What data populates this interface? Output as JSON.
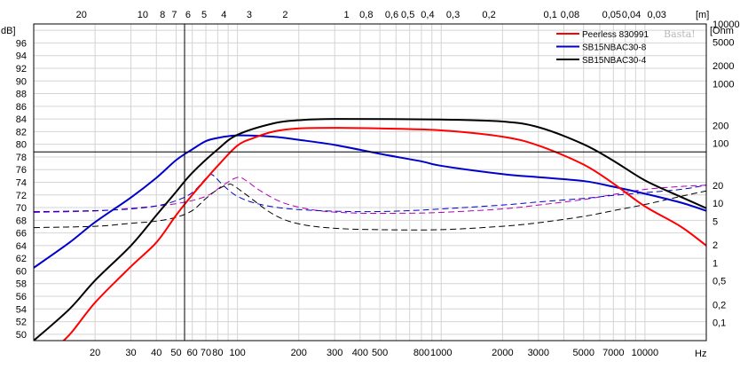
{
  "chart_data": {
    "type": "line",
    "left_axis_label": "dB]",
    "right_axis_label": "[Ohm",
    "top_axis_label": "[m]",
    "bottom_axis_label": "Hz",
    "watermark": "Basta!",
    "xlim": [
      10,
      20000
    ],
    "x_scale": "log",
    "ylim": [
      49,
      99
    ],
    "y2lim": [
      0.05,
      10000
    ],
    "y2_scale": "log",
    "grid": true,
    "legend_position": "top-right",
    "x_ticks": [
      {
        "v": 20,
        "label": "20"
      },
      {
        "v": 30,
        "label": "30"
      },
      {
        "v": 40,
        "label": "40"
      },
      {
        "v": 50,
        "label": "50"
      },
      {
        "v": 60,
        "label": "60"
      },
      {
        "v": 70,
        "label": "70"
      },
      {
        "v": 80,
        "label": "80"
      },
      {
        "v": 100,
        "label": "100"
      },
      {
        "v": 200,
        "label": "200"
      },
      {
        "v": 300,
        "label": "300"
      },
      {
        "v": 400,
        "label": "400"
      },
      {
        "v": 500,
        "label": "500"
      },
      {
        "v": 800,
        "label": "800"
      },
      {
        "v": 1000,
        "label": "1000"
      },
      {
        "v": 2000,
        "label": "2000"
      },
      {
        "v": 3000,
        "label": "3000"
      },
      {
        "v": 5000,
        "label": "5000"
      },
      {
        "v": 7000,
        "label": "7000"
      },
      {
        "v": 10000,
        "label": "10000"
      }
    ],
    "top_ticks": [
      {
        "v": 17.15,
        "label": "20"
      },
      {
        "v": 34.3,
        "label": "10"
      },
      {
        "v": 42.9,
        "label": "8"
      },
      {
        "v": 49,
        "label": "7"
      },
      {
        "v": 57.2,
        "label": "6"
      },
      {
        "v": 68.6,
        "label": "5"
      },
      {
        "v": 85.8,
        "label": "4"
      },
      {
        "v": 114.3,
        "label": "3"
      },
      {
        "v": 171.5,
        "label": "2"
      },
      {
        "v": 343,
        "label": "1"
      },
      {
        "v": 428.8,
        "label": "0,8"
      },
      {
        "v": 571.7,
        "label": "0,6"
      },
      {
        "v": 686,
        "label": "0,5"
      },
      {
        "v": 857.5,
        "label": "0,4"
      },
      {
        "v": 1143,
        "label": "0,3"
      },
      {
        "v": 1715,
        "label": "0,2"
      },
      {
        "v": 3430,
        "label": "0,1"
      },
      {
        "v": 4288,
        "label": "0,08"
      },
      {
        "v": 6860,
        "label": "0,05"
      },
      {
        "v": 8575,
        "label": "0,04"
      },
      {
        "v": 11433,
        "label": "0,03"
      }
    ],
    "y_ticks": [
      {
        "v": 50,
        "label": "50"
      },
      {
        "v": 52,
        "label": "52"
      },
      {
        "v": 54,
        "label": "54"
      },
      {
        "v": 56,
        "label": "56"
      },
      {
        "v": 58,
        "label": "58"
      },
      {
        "v": 60,
        "label": "60"
      },
      {
        "v": 62,
        "label": "62"
      },
      {
        "v": 64,
        "label": "64"
      },
      {
        "v": 66,
        "label": "66"
      },
      {
        "v": 68,
        "label": "68"
      },
      {
        "v": 70,
        "label": "70"
      },
      {
        "v": 72,
        "label": "72"
      },
      {
        "v": 74,
        "label": "74"
      },
      {
        "v": 76,
        "label": "76"
      },
      {
        "v": 78,
        "label": "78"
      },
      {
        "v": 80,
        "label": "80"
      },
      {
        "v": 82,
        "label": "82"
      },
      {
        "v": 84,
        "label": "84"
      },
      {
        "v": 86,
        "label": "86"
      },
      {
        "v": 88,
        "label": "88"
      },
      {
        "v": 90,
        "label": "90"
      },
      {
        "v": 92,
        "label": "92"
      },
      {
        "v": 94,
        "label": "94"
      },
      {
        "v": 96,
        "label": "96"
      }
    ],
    "y2_ticks": [
      {
        "v": 0.1,
        "label": "0,1"
      },
      {
        "v": 0.2,
        "label": "0,2"
      },
      {
        "v": 0.5,
        "label": "0,5"
      },
      {
        "v": 1,
        "label": "1"
      },
      {
        "v": 2,
        "label": "2"
      },
      {
        "v": 5,
        "label": "5"
      },
      {
        "v": 10,
        "label": "10"
      },
      {
        "v": 20,
        "label": "20"
      },
      {
        "v": 100,
        "label": "100"
      },
      {
        "v": 200,
        "label": "200"
      },
      {
        "v": 1000,
        "label": "1000"
      },
      {
        "v": 2000,
        "label": "2000"
      },
      {
        "v": 5000,
        "label": "5000"
      },
      {
        "v": 10000,
        "label": "10000"
      }
    ],
    "cursor": {
      "x": 55,
      "y": 78.8
    },
    "series": [
      {
        "name": "Peerless 830991",
        "color": "#ff0000",
        "kind": "spl",
        "points": [
          [
            10,
            47
          ],
          [
            14,
            49
          ],
          [
            20,
            55
          ],
          [
            30,
            60.7
          ],
          [
            40,
            64.5
          ],
          [
            50,
            68.8
          ],
          [
            60,
            72
          ],
          [
            70,
            74.5
          ],
          [
            80,
            76.6
          ],
          [
            100,
            79.8
          ],
          [
            120,
            81
          ],
          [
            150,
            82
          ],
          [
            200,
            82.5
          ],
          [
            300,
            82.6
          ],
          [
            500,
            82.5
          ],
          [
            1000,
            82.2
          ],
          [
            2000,
            81.2
          ],
          [
            3000,
            79.8
          ],
          [
            5000,
            76.8
          ],
          [
            7000,
            73.8
          ],
          [
            10000,
            70.2
          ],
          [
            15000,
            67
          ],
          [
            20000,
            64
          ]
        ]
      },
      {
        "name": "SB15NBAC30-8",
        "color": "#0000cc",
        "kind": "spl",
        "points": [
          [
            10,
            60.5
          ],
          [
            15,
            64.5
          ],
          [
            20,
            67.7
          ],
          [
            30,
            71.6
          ],
          [
            40,
            74.7
          ],
          [
            50,
            77.5
          ],
          [
            60,
            79.2
          ],
          [
            70,
            80.5
          ],
          [
            80,
            81
          ],
          [
            100,
            81.4
          ],
          [
            150,
            81.2
          ],
          [
            200,
            80.7
          ],
          [
            300,
            79.9
          ],
          [
            500,
            78.5
          ],
          [
            800,
            77.3
          ],
          [
            1000,
            76.6
          ],
          [
            2000,
            75.3
          ],
          [
            3000,
            74.8
          ],
          [
            5000,
            74.2
          ],
          [
            7000,
            73.3
          ],
          [
            10000,
            72.2
          ],
          [
            15000,
            70.8
          ],
          [
            20000,
            69.5
          ]
        ]
      },
      {
        "name": "SB15NBAC30-4",
        "color": "#000000",
        "kind": "spl",
        "points": [
          [
            10,
            49
          ],
          [
            15,
            54
          ],
          [
            20,
            58.5
          ],
          [
            30,
            64
          ],
          [
            40,
            68.8
          ],
          [
            50,
            72.5
          ],
          [
            60,
            75.5
          ],
          [
            80,
            79.2
          ],
          [
            100,
            81.5
          ],
          [
            150,
            83.3
          ],
          [
            200,
            83.8
          ],
          [
            300,
            84
          ],
          [
            1000,
            83.9
          ],
          [
            2000,
            83.6
          ],
          [
            3000,
            82.7
          ],
          [
            5000,
            80
          ],
          [
            7000,
            77.4
          ],
          [
            10000,
            74.3
          ],
          [
            15000,
            71.7
          ],
          [
            20000,
            69.9
          ]
        ]
      },
      {
        "name": "",
        "color": "#b000b0",
        "kind": "impedance",
        "points": [
          [
            10,
            7
          ],
          [
            20,
            7.4
          ],
          [
            30,
            8.2
          ],
          [
            50,
            9.8
          ],
          [
            70,
            13
          ],
          [
            85,
            20
          ],
          [
            100,
            27
          ],
          [
            110,
            24
          ],
          [
            130,
            16
          ],
          [
            170,
            10
          ],
          [
            250,
            7.5
          ],
          [
            400,
            6.8
          ],
          [
            700,
            6.8
          ],
          [
            1000,
            7
          ],
          [
            2000,
            8
          ],
          [
            3000,
            9.3
          ],
          [
            5000,
            11.5
          ],
          [
            7000,
            14
          ],
          [
            10000,
            17
          ],
          [
            15000,
            19
          ],
          [
            20000,
            20
          ]
        ]
      },
      {
        "name": "",
        "color": "#0000cc",
        "kind": "impedance",
        "points": [
          [
            10,
            7.2
          ],
          [
            20,
            7.5
          ],
          [
            30,
            8
          ],
          [
            40,
            9
          ],
          [
            50,
            11
          ],
          [
            60,
            15
          ],
          [
            70,
            26
          ],
          [
            75,
            30
          ],
          [
            85,
            20
          ],
          [
            100,
            13
          ],
          [
            130,
            9.5
          ],
          [
            200,
            7.8
          ],
          [
            400,
            7.2
          ],
          [
            700,
            7.5
          ],
          [
            1000,
            8
          ],
          [
            2000,
            9.3
          ],
          [
            3000,
            10.5
          ],
          [
            5000,
            12
          ],
          [
            7000,
            13.5
          ],
          [
            10000,
            15
          ],
          [
            15000,
            17
          ],
          [
            20000,
            20
          ]
        ]
      },
      {
        "name": "",
        "color": "#000000",
        "kind": "impedance",
        "points": [
          [
            10,
            3.9
          ],
          [
            20,
            4.1
          ],
          [
            30,
            4.6
          ],
          [
            40,
            5
          ],
          [
            50,
            5.8
          ],
          [
            60,
            7.5
          ],
          [
            70,
            12
          ],
          [
            80,
            17
          ],
          [
            90,
            20.5
          ],
          [
            95,
            20
          ],
          [
            110,
            14
          ],
          [
            150,
            6.5
          ],
          [
            200,
            4.5
          ],
          [
            300,
            3.8
          ],
          [
            500,
            3.6
          ],
          [
            1000,
            3.6
          ],
          [
            2000,
            4.1
          ],
          [
            3000,
            4.7
          ],
          [
            5000,
            6
          ],
          [
            7000,
            7.5
          ],
          [
            10000,
            9.5
          ],
          [
            15000,
            13
          ],
          [
            20000,
            16
          ]
        ]
      }
    ]
  }
}
